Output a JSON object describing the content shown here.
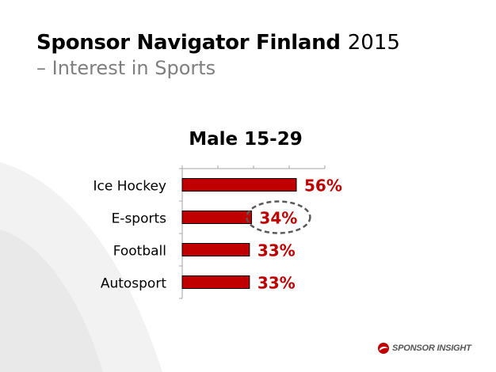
{
  "header": {
    "title_bold": "Sponsor Navigator Finland",
    "title_year": "2015",
    "subtitle": "– Interest in Sports"
  },
  "chart_data": {
    "type": "bar",
    "orientation": "horizontal",
    "title": "Male 15-29",
    "categories": [
      "Ice Hockey",
      "E-sports",
      "Football",
      "Autosport"
    ],
    "values": [
      56,
      34,
      33,
      33
    ],
    "value_labels": [
      "56%",
      "34%",
      "33%",
      "33%"
    ],
    "xlim": [
      0,
      70
    ],
    "grid": false,
    "highlighted_category": "E-sports",
    "bar_color": "#c00000",
    "label_color": "#c00000"
  },
  "brand": {
    "logo_text": "SPONSOR INSIGHT",
    "accent_color": "#c00000"
  }
}
